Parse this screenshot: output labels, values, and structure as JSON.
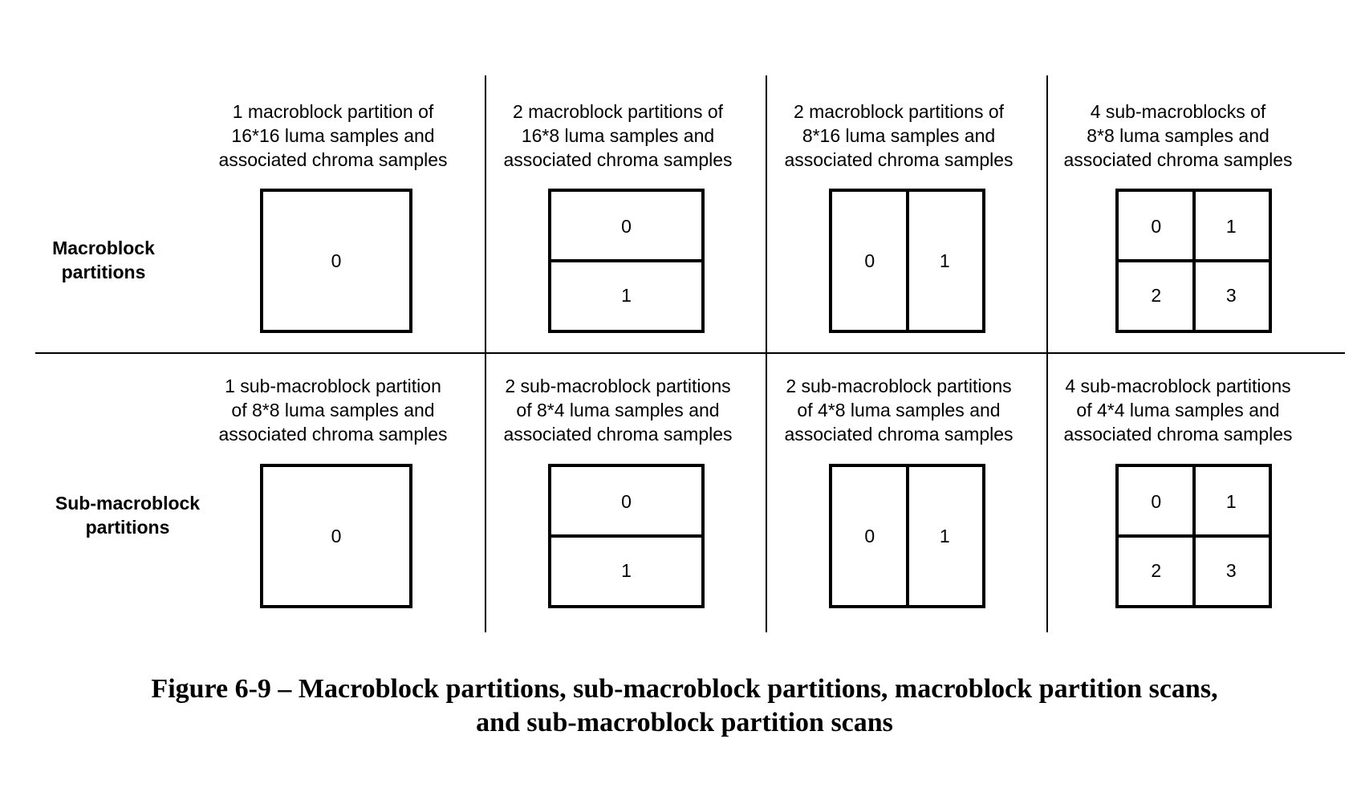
{
  "rows": [
    {
      "label_line1": "Macroblock",
      "label_line2": "partitions",
      "columns": [
        {
          "title": [
            "1 macroblock partition of",
            "16*16 luma samples and",
            "associated chroma samples"
          ],
          "layout": "single",
          "cells": [
            "0"
          ]
        },
        {
          "title": [
            "2 macroblock partitions of",
            "16*8 luma samples and",
            "associated chroma samples"
          ],
          "layout": "horizontal",
          "cells": [
            "0",
            "1"
          ]
        },
        {
          "title": [
            "2 macroblock partitions of",
            "8*16 luma samples and",
            "associated chroma samples"
          ],
          "layout": "vertical",
          "cells": [
            "0",
            "1"
          ]
        },
        {
          "title": [
            "4 sub-macroblocks of",
            "8*8 luma samples and",
            "associated chroma samples"
          ],
          "layout": "quad",
          "cells": [
            "0",
            "1",
            "2",
            "3"
          ]
        }
      ]
    },
    {
      "label_line1": "Sub-macroblock",
      "label_line2": "partitions",
      "columns": [
        {
          "title": [
            "1 sub-macroblock partition",
            "of 8*8 luma samples and",
            "associated chroma samples"
          ],
          "layout": "single",
          "cells": [
            "0"
          ]
        },
        {
          "title": [
            "2 sub-macroblock partitions",
            "of 8*4 luma samples and",
            "associated chroma samples"
          ],
          "layout": "horizontal",
          "cells": [
            "0",
            "1"
          ]
        },
        {
          "title": [
            "2 sub-macroblock partitions",
            "of 4*8 luma samples and",
            "associated chroma samples"
          ],
          "layout": "vertical",
          "cells": [
            "0",
            "1"
          ]
        },
        {
          "title": [
            "4 sub-macroblock partitions",
            "of 4*4 luma samples and",
            "associated chroma samples"
          ],
          "layout": "quad",
          "cells": [
            "0",
            "1",
            "2",
            "3"
          ]
        }
      ]
    }
  ],
  "caption": {
    "line1": "Figure 6-9 – Macroblock partitions, sub-macroblock partitions, macroblock partition scans,",
    "line2": "and sub-macroblock partition scans"
  }
}
